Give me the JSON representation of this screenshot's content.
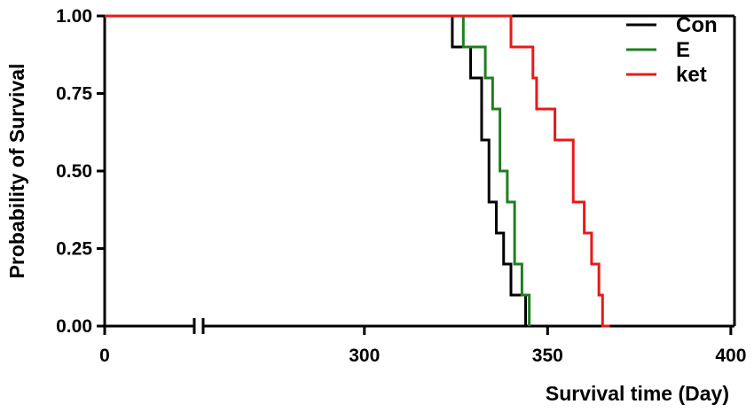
{
  "chart_data": {
    "type": "line",
    "step": true,
    "xlabel": "Survival time (Day)",
    "ylabel": "Probability of Survival",
    "axis_break": true,
    "x_segments": [
      {
        "range": [
          0,
          45
        ],
        "ticks": [
          0
        ],
        "tick_labels": [
          "0"
        ]
      },
      {
        "range": [
          256,
          401
        ],
        "ticks": [
          300,
          350,
          400
        ],
        "tick_labels": [
          "300",
          "350",
          "400"
        ]
      }
    ],
    "ylim": [
      0,
      1
    ],
    "yticks": [
      0,
      0.25,
      0.5,
      0.75,
      1.0
    ],
    "ytick_labels": [
      "0.00",
      "0.25",
      "0.50",
      "0.75",
      "1.00"
    ],
    "grid": false,
    "legend_position": "top-right",
    "series": [
      {
        "name": "Con",
        "color": "#000000",
        "x": [
          0,
          324,
          329,
          332,
          334,
          336,
          338,
          340,
          344,
          351
        ],
        "y": [
          1.0,
          0.9,
          0.8,
          0.6,
          0.4,
          0.3,
          0.2,
          0.1,
          0.0,
          0.0
        ]
      },
      {
        "name": "E",
        "color": "#1f7f1f",
        "x": [
          0,
          327,
          333,
          335,
          337,
          339,
          341,
          343,
          345
        ],
        "y": [
          1.0,
          0.9,
          0.8,
          0.7,
          0.5,
          0.4,
          0.2,
          0.1,
          0.0
        ]
      },
      {
        "name": "ket",
        "color": "#e8191a",
        "x": [
          0,
          340,
          346,
          347,
          352,
          357,
          360,
          362,
          364,
          365,
          367
        ],
        "y": [
          1.0,
          0.9,
          0.8,
          0.7,
          0.6,
          0.4,
          0.3,
          0.2,
          0.1,
          0.0,
          0.0
        ]
      }
    ]
  }
}
